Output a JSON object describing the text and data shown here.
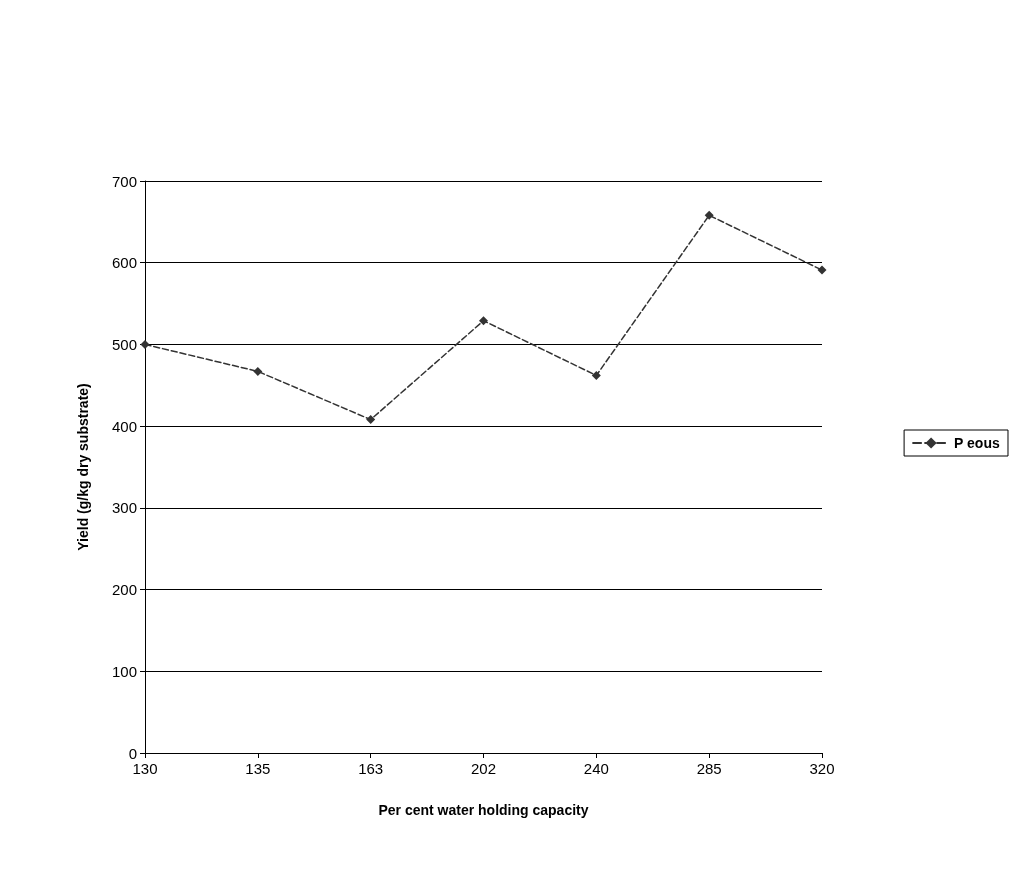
{
  "chart_data": {
    "type": "line",
    "xlabel": "Per cent water holding capacity",
    "ylabel": "Yield (g/kg dry substrate)",
    "categories": [
      "130",
      "135",
      "163",
      "202",
      "240",
      "285",
      "320"
    ],
    "series": [
      {
        "name": "P eous",
        "color": "#333333",
        "values": [
          500,
          467,
          408,
          529,
          462,
          658,
          591
        ]
      }
    ],
    "ylim": [
      0,
      700
    ],
    "yticks": [
      0,
      100,
      200,
      300,
      400,
      500,
      600,
      700
    ],
    "grid": "y",
    "legend": "right",
    "marker": "diamond",
    "line_style": "dashed"
  }
}
